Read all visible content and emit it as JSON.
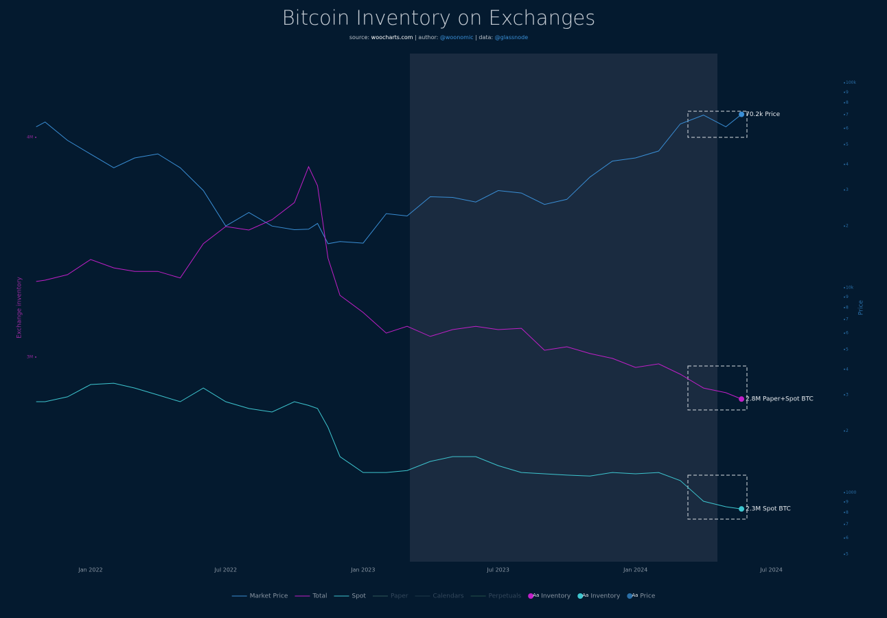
{
  "chart_data": {
    "type": "line",
    "title": "Bitcoin Inventory on Exchanges",
    "subtitle": [
      "source: ",
      "woocharts.com",
      " | author: ",
      "@woonomic",
      " | data: ",
      "@glassnode"
    ],
    "ylabel": "Exchange inventory",
    "y2label": "Price",
    "x": [
      "2021-10-20",
      "2021-11-01",
      "2021-12-01",
      "2022-01-01",
      "2022-02-01",
      "2022-03-01",
      "2022-04-01",
      "2022-05-01",
      "2022-06-01",
      "2022-07-01",
      "2022-08-01",
      "2022-09-01",
      "2022-10-01",
      "2022-10-20",
      "2022-11-01",
      "2022-11-15",
      "2022-12-01",
      "2023-01-01",
      "2023-02-01",
      "2023-03-01",
      "2023-04-01",
      "2023-05-01",
      "2023-06-01",
      "2023-07-01",
      "2023-08-01",
      "2023-09-01",
      "2023-10-01",
      "2023-11-01",
      "2023-12-01",
      "2024-01-01",
      "2024-02-01",
      "2024-03-01",
      "2024-04-01",
      "2024-05-01",
      "2024-05-22"
    ],
    "xlim": [
      "2021-10-01",
      "2024-09-01"
    ],
    "xticks": [
      {
        "value": "2022-01-01",
        "label": "Jan 2022"
      },
      {
        "value": "2022-07-01",
        "label": "Jul 2022"
      },
      {
        "value": "2023-01-01",
        "label": "Jan 2023"
      },
      {
        "value": "2023-07-01",
        "label": "Jul 2023"
      },
      {
        "value": "2024-01-01",
        "label": "Jan 2024"
      },
      {
        "value": "2024-07-01",
        "label": "Jul 2024"
      }
    ],
    "ylim": [
      2069000,
      4381000
    ],
    "yticks": [
      {
        "value": 3000000,
        "label": "3M"
      },
      {
        "value": 4000000,
        "label": "4M"
      }
    ],
    "y2lim": [
      460,
      139000
    ],
    "y2scale": "log",
    "y2ticks": [
      {
        "value": 100000,
        "label": "100k"
      },
      {
        "value": 90000,
        "label": "9"
      },
      {
        "value": 80000,
        "label": "8"
      },
      {
        "value": 70000,
        "label": "7"
      },
      {
        "value": 60000,
        "label": "6"
      },
      {
        "value": 50000,
        "label": "5"
      },
      {
        "value": 40000,
        "label": "4"
      },
      {
        "value": 30000,
        "label": "3"
      },
      {
        "value": 20000,
        "label": "2"
      },
      {
        "value": 10000,
        "label": "10k"
      },
      {
        "value": 9000,
        "label": "9"
      },
      {
        "value": 8000,
        "label": "8"
      },
      {
        "value": 7000,
        "label": "7"
      },
      {
        "value": 6000,
        "label": "6"
      },
      {
        "value": 5000,
        "label": "5"
      },
      {
        "value": 4000,
        "label": "4"
      },
      {
        "value": 3000,
        "label": "3"
      },
      {
        "value": 2000,
        "label": "2"
      },
      1000,
      {
        "value": 900,
        "label": "9"
      },
      {
        "value": 800,
        "label": "8"
      },
      {
        "value": 700,
        "label": "7"
      },
      {
        "value": 600,
        "label": "6"
      },
      {
        "value": 500,
        "label": "5"
      }
    ],
    "grid": false,
    "series": [
      {
        "name": "Market Price",
        "color": "#3a8fd6",
        "axis": "y2",
        "annotation": "70.2k Price",
        "values": [
          61000,
          64400,
          52400,
          44900,
          38500,
          43000,
          45000,
          38500,
          29800,
          20000,
          23300,
          20000,
          19200,
          19300,
          20600,
          16400,
          16800,
          16500,
          23000,
          22400,
          27800,
          27600,
          26200,
          29800,
          29000,
          25500,
          27000,
          34700,
          41500,
          43000,
          46500,
          63000,
          69600,
          61000,
          70200
        ]
      },
      {
        "name": "Total",
        "color": "#c21fc9",
        "annotation": "2.8M Paper+Spot BTC",
        "values": [
          3344000,
          3350000,
          3375000,
          3444000,
          3406000,
          3390000,
          3390000,
          3360000,
          3516000,
          3594000,
          3578000,
          3625000,
          3703000,
          3866000,
          3780000,
          3450000,
          3281000,
          3203000,
          3109000,
          3140000,
          3094000,
          3125000,
          3140000,
          3125000,
          3131000,
          3031000,
          3047000,
          3016000,
          2994000,
          2953000,
          2969000,
          2922000,
          2859000,
          2838000,
          2809000
        ]
      },
      {
        "name": "Spot",
        "color": "#3ec6d0",
        "annotation": "2.3M Spot BTC",
        "values": [
          2797000,
          2797000,
          2819000,
          2875000,
          2881000,
          2859000,
          2828000,
          2797000,
          2859000,
          2797000,
          2766000,
          2750000,
          2797000,
          2780000,
          2766000,
          2680000,
          2547000,
          2475000,
          2475000,
          2484000,
          2525000,
          2547000,
          2547000,
          2506000,
          2475000,
          2469000,
          2463000,
          2459000,
          2475000,
          2469000,
          2475000,
          2438000,
          2344000,
          2319000,
          2309000
        ]
      }
    ],
    "legend_hidden": [
      {
        "name": "Paper",
        "color": "#2f5a5a"
      },
      {
        "name": "Calendars",
        "color": "#1e3a48"
      },
      {
        "name": "Perpetuals",
        "color": "#245048"
      }
    ],
    "marker_legend": [
      {
        "symbol": "Aa",
        "name": "Inventory",
        "color": "#c21fc9"
      },
      {
        "symbol": "Aa",
        "name": "Inventory",
        "color": "#3ec6d0"
      },
      {
        "symbol": "Aa",
        "name": "Price",
        "color": "#2a6fa8"
      }
    ]
  }
}
